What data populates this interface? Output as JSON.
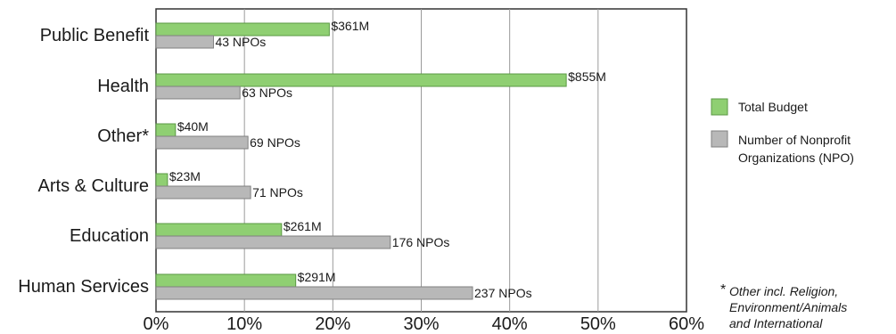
{
  "chart_data": {
    "type": "bar",
    "orientation": "horizontal",
    "categories": [
      "Public Benefit",
      "Health",
      "Other*",
      "Arts & Culture",
      "Education",
      "Human Services"
    ],
    "series": [
      {
        "name": "Total Budget",
        "values": [
          19.6,
          46.4,
          2.2,
          1.3,
          14.2,
          15.8
        ],
        "labels": [
          "$361M",
          "$855M",
          "$40M",
          "$23M",
          "$261M",
          "$291M"
        ],
        "color": "#8fcf72"
      },
      {
        "name": "Number of Nonprofit Organizations (NPO)",
        "values": [
          6.5,
          9.5,
          10.4,
          10.7,
          26.5,
          35.8
        ],
        "labels": [
          "43 NPOs",
          "63 NPOs",
          "69 NPOs",
          "71 NPOs",
          "176 NPOs",
          "237 NPOs"
        ],
        "color": "#b8b8b8"
      }
    ],
    "xlim": [
      0,
      60
    ],
    "xticks": [
      "0%",
      "10%",
      "20%",
      "30%",
      "40%",
      "50%",
      "60%"
    ],
    "grid": "vertical",
    "legend": {
      "position": "right",
      "entries": [
        "Total Budget",
        "Number of Nonprofit",
        "Organizations (NPO)"
      ]
    },
    "footnote": {
      "star": "*",
      "lines": [
        "Other incl. Religion,",
        "Environment/Animals",
        "and International"
      ]
    }
  }
}
